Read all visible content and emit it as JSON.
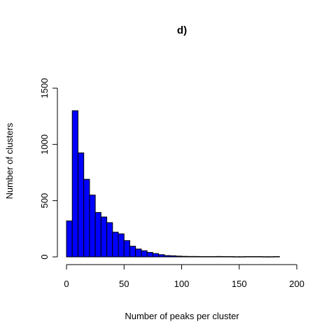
{
  "chart_data": {
    "type": "bar",
    "title": "d)",
    "xlabel": "Number of peaks per cluster",
    "ylabel": "Number of clusters",
    "bin_width": 5,
    "x_start": 0,
    "xlim": [
      0,
      200
    ],
    "ylim": [
      0,
      1500
    ],
    "xticks": [
      "0",
      "50",
      "100",
      "150",
      "200"
    ],
    "yticks": [
      "0",
      "500",
      "1000",
      "1500"
    ],
    "bar_color": "#0000ff",
    "grid": false,
    "legend": "none",
    "values": [
      320,
      1300,
      925,
      690,
      550,
      395,
      355,
      305,
      220,
      205,
      145,
      95,
      70,
      55,
      40,
      30,
      20,
      12,
      10,
      7,
      5,
      4,
      4,
      3,
      3,
      3,
      4,
      3,
      3,
      2,
      2,
      3,
      3,
      3,
      2,
      2,
      3
    ]
  }
}
